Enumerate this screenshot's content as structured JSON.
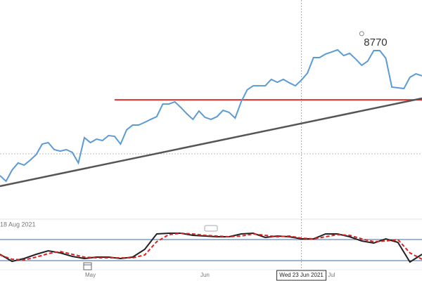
{
  "chart_data": [
    {
      "type": "line",
      "date_label": "18 Aug 2021",
      "xlim": [
        0,
        70
      ],
      "ylim": [
        7500,
        9000
      ],
      "xticks": [
        {
          "value": 15,
          "label": "May"
        },
        {
          "value": 34,
          "label": "Jun"
        },
        {
          "value": 55,
          "label": "Jul"
        }
      ],
      "crosshair": {
        "x": 50,
        "label": "Wed 23 Jun 2021"
      },
      "peak_marker": {
        "x": 60,
        "value": 8770
      },
      "series": [
        {
          "color": "#5b9bd5",
          "values": [
            7798,
            7760,
            7836,
            7885,
            7870,
            7904,
            7942,
            8014,
            8024,
            7976,
            7966,
            7976,
            7957,
            7885,
            8058,
            8024,
            8048,
            8038,
            8072,
            8067,
            8014,
            8111,
            8144,
            8144,
            8163,
            8183,
            8202,
            8288,
            8288,
            8303,
            8264,
            8221,
            8183,
            8240,
            8197,
            8183,
            8202,
            8245,
            8231,
            8192,
            8303,
            8385,
            8413,
            8413,
            8413,
            8457,
            8437,
            8457,
            8433,
            8413,
            8452,
            8500,
            8606,
            8606,
            8630,
            8644,
            8659,
            8620,
            8635,
            8596,
            8553,
            8582,
            8654,
            8654,
            8601,
            8404,
            8399,
            8394,
            8471,
            8495,
            8481
          ]
        }
      ],
      "hline": {
        "value": 8317,
        "from": 19,
        "color": "#e03030"
      },
      "trendline": {
        "values": [
          7726,
          8327
        ],
        "color": "#555555"
      }
    },
    {
      "type": "line",
      "xlim": [
        0,
        35
      ],
      "ylim": [
        0,
        100
      ],
      "levels": [
        20,
        80
      ],
      "level_color": "#3a6ea5",
      "series": [
        {
          "color": "#222222",
          "dash": false,
          "values": [
            38,
            18,
            26,
            38,
            48,
            42,
            32,
            26,
            30,
            30,
            26,
            30,
            52,
            96,
            98,
            98,
            92,
            90,
            88,
            88,
            96,
            98,
            86,
            90,
            88,
            82,
            82,
            96,
            96,
            88,
            76,
            70,
            82,
            72,
            16,
            38
          ]
        },
        {
          "color": "#e02020",
          "dash": true,
          "values": [
            36,
            24,
            22,
            30,
            40,
            46,
            38,
            30,
            28,
            28,
            28,
            28,
            36,
            74,
            94,
            98,
            96,
            92,
            90,
            88,
            90,
            96,
            92,
            88,
            90,
            84,
            82,
            88,
            94,
            92,
            82,
            74,
            76,
            80,
            42,
            24
          ]
        }
      ]
    }
  ]
}
